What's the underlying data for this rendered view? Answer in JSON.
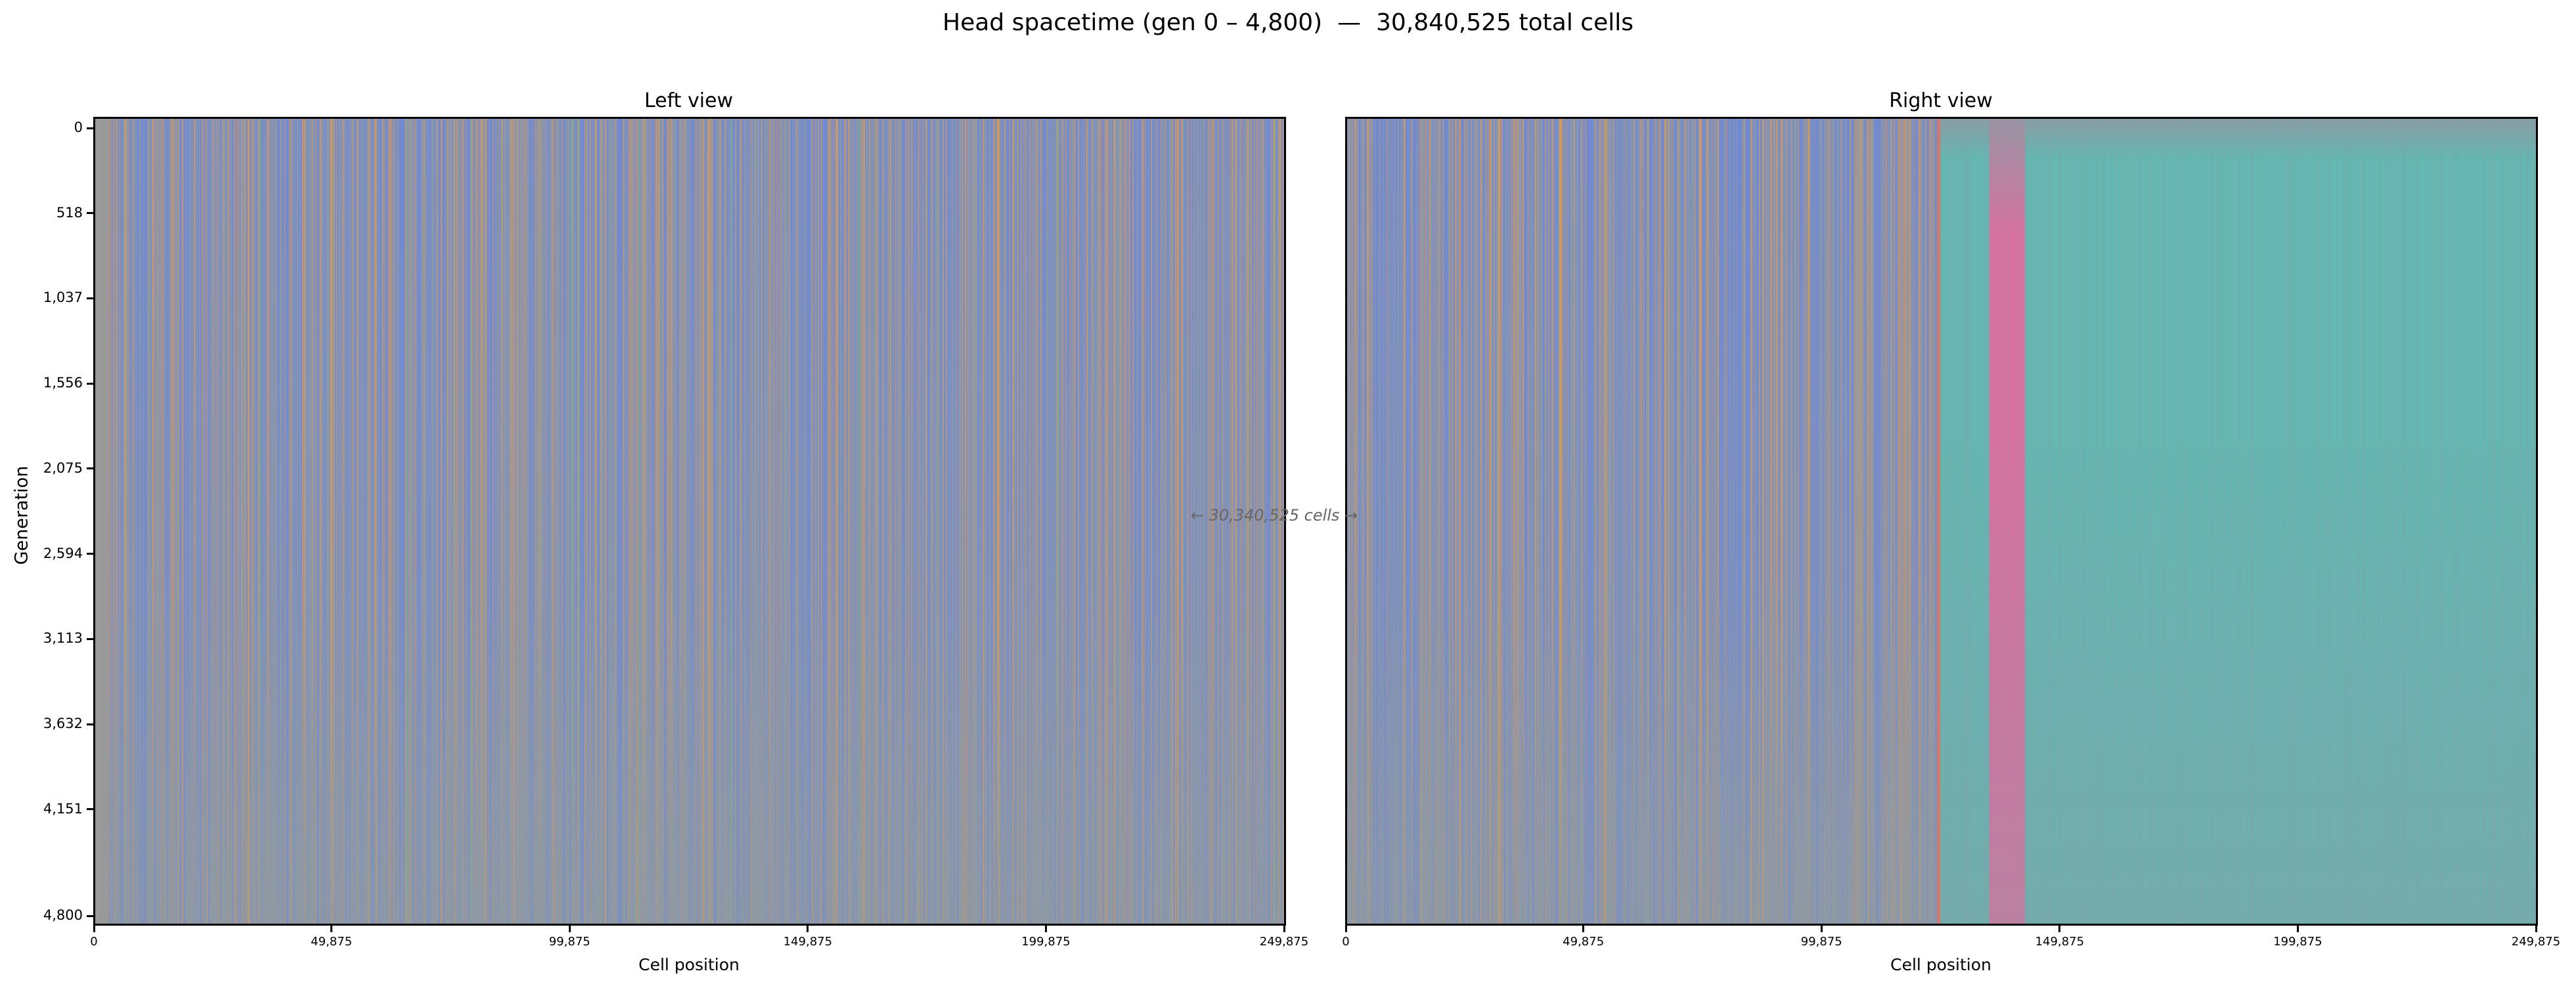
{
  "chart_data": {
    "type": "heatmap",
    "title": "Head spacetime (gen 0 – 4,800)  —  30,840,525 total cells",
    "ylabel": "Generation",
    "y_ticks": [
      "0",
      "518",
      "1,037",
      "1,556",
      "2,075",
      "2,594",
      "3,113",
      "3,632",
      "4,151",
      "4,800"
    ],
    "y_tick_values": [
      0,
      518,
      1037,
      1556,
      2075,
      2594,
      3113,
      3632,
      4151,
      4800
    ],
    "ylim": [
      0,
      4800
    ],
    "annotation": "← 30,340,525 cells →",
    "colors": {
      "background": "#999999",
      "blue": "#6e88d8",
      "orange": "#d89a5a",
      "green": "#6cbf78",
      "teal": "#66b6b2",
      "pink": "#d672a0",
      "gray": "#8f9aa4"
    },
    "panels": [
      {
        "title": "Left view",
        "xlabel": "Cell position",
        "x_ticks": [
          "0",
          "49,875",
          "99,875",
          "149,875",
          "199,875",
          "249,875"
        ],
        "x_tick_values": [
          0,
          49875,
          99875,
          149875,
          199875,
          249875
        ],
        "xlim": [
          0,
          249875
        ],
        "regions": [
          {
            "from": 0,
            "to": 249875,
            "pattern": "blue/orange stripes with sparse green"
          }
        ]
      },
      {
        "title": "Right view",
        "xlabel": "Cell position",
        "x_ticks": [
          "0",
          "49,875",
          "99,875",
          "149,875",
          "199,875",
          "249,875"
        ],
        "x_tick_values": [
          0,
          49875,
          99875,
          149875,
          199875,
          249875
        ],
        "xlim": [
          0,
          249875
        ],
        "regions": [
          {
            "from": 0,
            "to": 124500,
            "pattern": "blue/orange stripes"
          },
          {
            "from": 124500,
            "to": 135000,
            "pattern": "teal"
          },
          {
            "from": 135000,
            "to": 142500,
            "pattern": "pink"
          },
          {
            "from": 142500,
            "to": 249875,
            "pattern": "teal"
          }
        ]
      }
    ]
  }
}
